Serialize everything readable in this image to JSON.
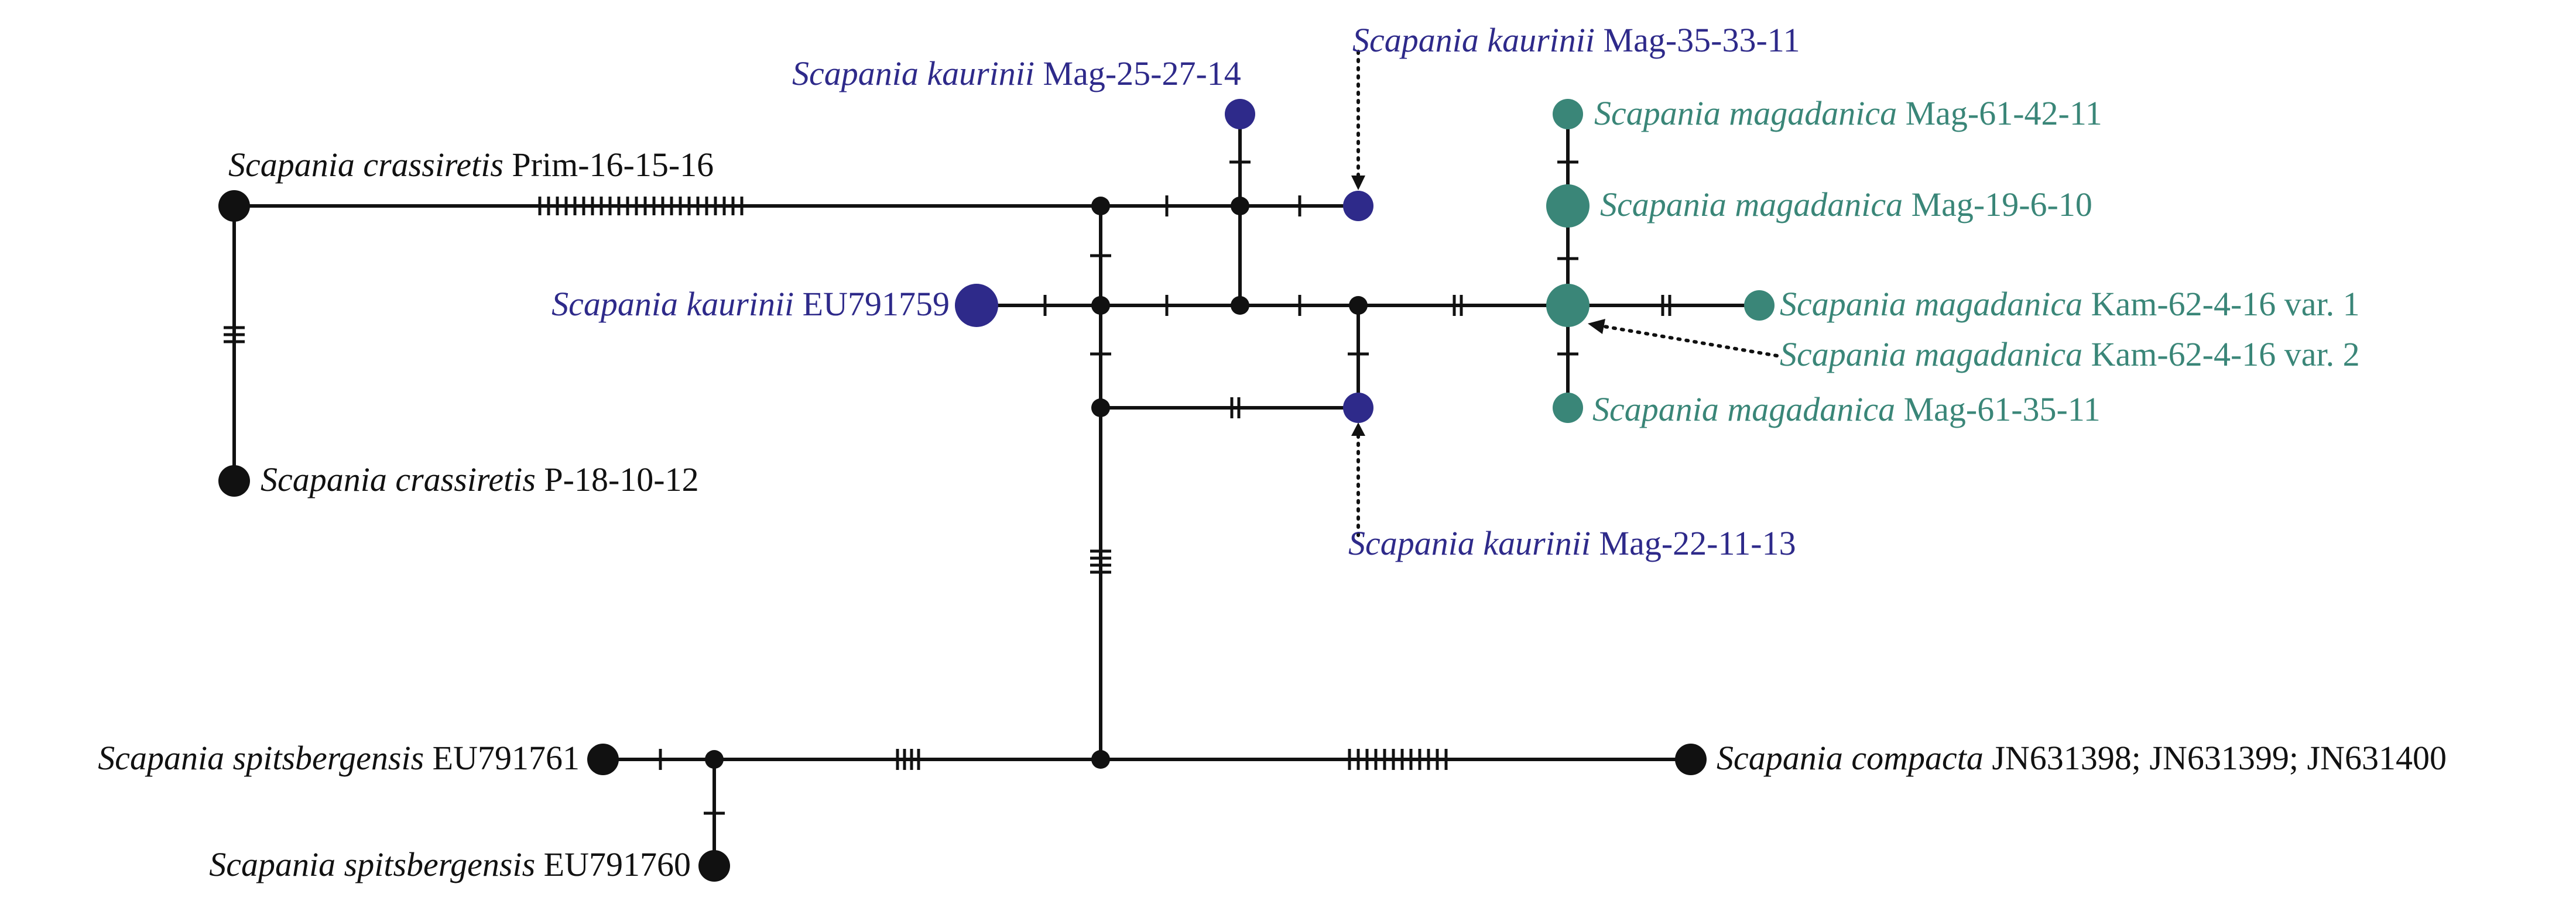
{
  "colors": {
    "black": "#111111",
    "kaurinii": "#2e2a8a",
    "magadanica": "#3a8678"
  },
  "labels": {
    "crassiretis_prim": {
      "species": "Scapania crassiretis",
      "id": "Prim-16-15-16"
    },
    "crassiretis_p": {
      "species": "Scapania crassiretis",
      "id": "P-18-10-12"
    },
    "kaurinii_eu": {
      "species": "Scapania kaurinii",
      "id": "EU791759"
    },
    "kaurinii_mag25": {
      "species": "Scapania kaurinii",
      "id": "Mag-25-27-14"
    },
    "kaurinii_mag35": {
      "species": "Scapania kaurinii",
      "id": "Mag-35-33-11"
    },
    "kaurinii_mag22": {
      "species": "Scapania kaurinii",
      "id": "Mag-22-11-13"
    },
    "magadanica_mag61_42": {
      "species": "Scapania magadanica",
      "id": "Mag-61-42-11"
    },
    "magadanica_mag19": {
      "species": "Scapania magadanica",
      "id": "Mag-19-6-10"
    },
    "magadanica_kam_v1": {
      "species": "Scapania magadanica",
      "id": "Kam-62-4-16 var. 1"
    },
    "magadanica_kam_v2": {
      "species": "Scapania magadanica",
      "id": "Kam-62-4-16 var. 2"
    },
    "magadanica_mag61_35": {
      "species": "Scapania magadanica",
      "id": "Mag-61-35-11"
    },
    "spitsbergensis_761": {
      "species": "Scapania spitsbergensis",
      "id": "EU791761"
    },
    "spitsbergensis_760": {
      "species": "Scapania spitsbergensis",
      "id": "EU791760"
    },
    "compacta": {
      "species": "Scapania compacta",
      "id": "JN631398; JN631399; JN631400"
    }
  }
}
